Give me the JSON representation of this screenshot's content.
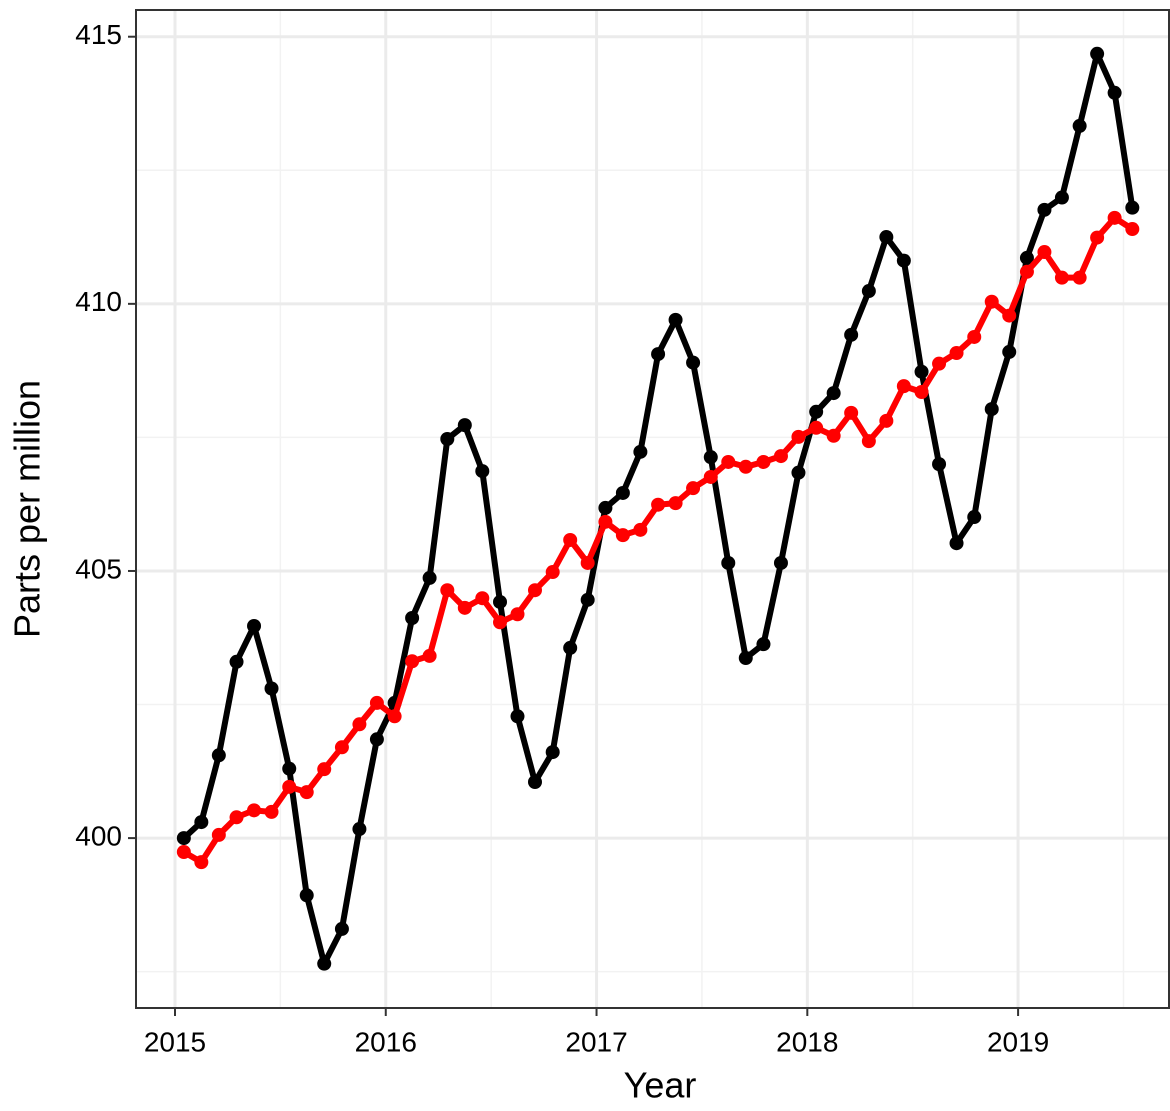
{
  "chart_data": {
    "type": "line",
    "xlabel": "Year",
    "ylabel": "Parts per million",
    "x": [
      2015.042,
      2015.125,
      2015.208,
      2015.292,
      2015.375,
      2015.458,
      2015.542,
      2015.625,
      2015.708,
      2015.792,
      2015.875,
      2015.958,
      2016.042,
      2016.125,
      2016.208,
      2016.292,
      2016.375,
      2016.458,
      2016.542,
      2016.625,
      2016.708,
      2016.792,
      2016.875,
      2016.958,
      2017.042,
      2017.125,
      2017.208,
      2017.292,
      2017.375,
      2017.458,
      2017.542,
      2017.625,
      2017.708,
      2017.792,
      2017.875,
      2017.958,
      2018.042,
      2018.125,
      2018.208,
      2018.292,
      2018.375,
      2018.458,
      2018.542,
      2018.625,
      2018.708,
      2018.792,
      2018.875,
      2018.958,
      2019.042,
      2019.125,
      2019.208,
      2019.292,
      2019.375,
      2019.458,
      2019.542
    ],
    "series": [
      {
        "color": "#000000",
        "values": [
          400.0,
          400.3,
          401.55,
          403.3,
          403.97,
          402.8,
          401.3,
          398.93,
          397.65,
          398.3,
          400.17,
          401.85,
          402.53,
          404.12,
          404.87,
          407.47,
          407.73,
          406.87,
          404.42,
          402.28,
          401.05,
          401.61,
          403.56,
          404.46,
          406.18,
          406.46,
          407.23,
          409.06,
          409.7,
          408.9,
          407.13,
          405.15,
          403.37,
          403.63,
          405.15,
          406.84,
          407.98,
          408.33,
          409.42,
          410.24,
          411.25,
          410.81,
          408.73,
          407.0,
          405.52,
          406.01,
          408.03,
          409.1,
          410.86,
          411.76,
          411.99,
          413.33,
          414.68,
          413.95,
          411.8
        ]
      },
      {
        "color": "#ff0000",
        "values": [
          399.74,
          399.55,
          400.06,
          400.39,
          400.52,
          400.49,
          400.96,
          400.86,
          401.29,
          401.7,
          402.13,
          402.53,
          402.28,
          403.31,
          403.41,
          404.64,
          404.31,
          404.49,
          404.04,
          404.19,
          404.64,
          404.98,
          405.58,
          405.15,
          405.92,
          405.67,
          405.77,
          406.24,
          406.27,
          406.55,
          406.76,
          407.04,
          406.95,
          407.04,
          407.15,
          407.51,
          407.68,
          407.53,
          407.96,
          407.43,
          407.81,
          408.46,
          408.35,
          408.88,
          409.08,
          409.38,
          410.04,
          409.78,
          410.6,
          410.97,
          410.49,
          410.49,
          411.24,
          411.61,
          411.4
        ]
      }
    ],
    "xlim": [
      2014.815,
      2019.716
    ],
    "xticks": [
      2015,
      2016,
      2017,
      2018,
      2019
    ],
    "ylim": [
      396.82,
      415.5
    ],
    "yticks": [
      400,
      405,
      410,
      415
    ],
    "x_minor_grid": [
      2015.5,
      2016.5,
      2017.5,
      2018.5,
      2019.5
    ],
    "y_minor_grid": [
      397.5,
      402.5,
      407.5,
      412.5
    ],
    "grid": true
  }
}
